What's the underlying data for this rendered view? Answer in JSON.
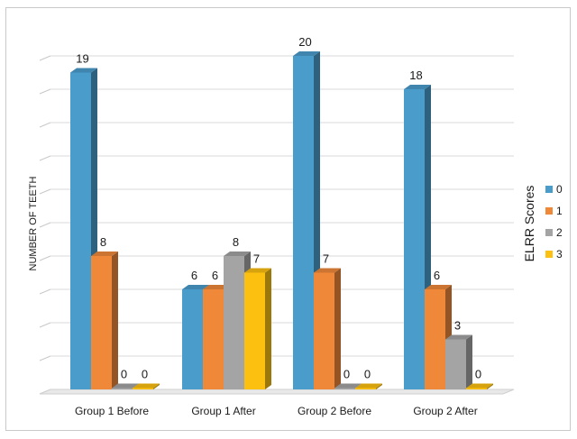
{
  "chart_data": {
    "type": "bar",
    "title": "",
    "xlabel": "",
    "ylabel": "NUMBER OF TEETH",
    "ylim": [
      0,
      20
    ],
    "grid": true,
    "style": "3d-column",
    "categories": [
      "Group 1 Before",
      "Group 1 After",
      "Group 2 Before",
      "Group 2 After"
    ],
    "legend": {
      "title": "ELRR Scores",
      "position": "right"
    },
    "series": [
      {
        "name": "0",
        "color": "#4a9ccb",
        "values": [
          19,
          6,
          20,
          18
        ]
      },
      {
        "name": "1",
        "color": "#f0883a",
        "values": [
          8,
          6,
          7,
          6
        ]
      },
      {
        "name": "2",
        "color": "#a4a4a4",
        "values": [
          0,
          8,
          0,
          3
        ]
      },
      {
        "name": "3",
        "color": "#fcc010",
        "values": [
          0,
          7,
          0,
          0
        ]
      }
    ],
    "data_labels": [
      [
        "19",
        "8",
        "0",
        "0"
      ],
      [
        "6",
        "6",
        "8",
        "7"
      ],
      [
        "20",
        "7",
        "0",
        "0"
      ],
      [
        "18",
        "6",
        "3",
        "0"
      ]
    ]
  }
}
